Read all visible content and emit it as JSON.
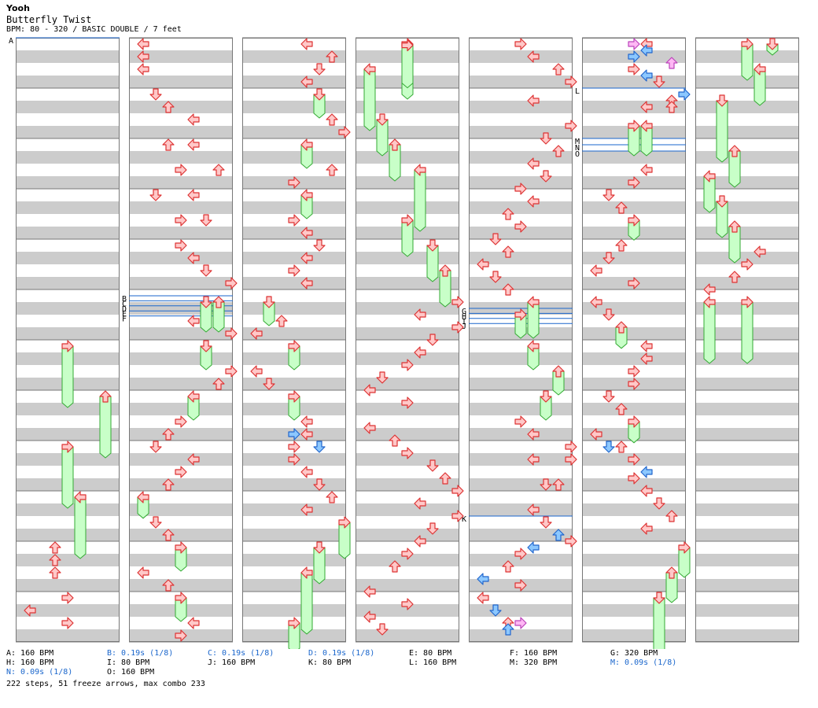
{
  "song": {
    "artist": "Yooh",
    "title": "Butterfly Twist",
    "meta": "BPM: 80 - 320 / BASIC DOUBLE / 7 feet"
  },
  "colors": {
    "arrow_fill": "#ffc8c8",
    "arrow_stroke": "#dd3333",
    "blue_fill": "#8cc8ff",
    "blue_stroke": "#2266cc",
    "pink_fill": "#ffb8f4",
    "pink_stroke": "#bb44bb",
    "freeze_fill": "#c8ffc8",
    "freeze_stroke": "#33aa33",
    "stripe": "#cccccc",
    "marker_line": "#1a66cc"
  },
  "markers": [
    {
      "col": 0,
      "beat": 0,
      "label": "A"
    },
    {
      "col": 1,
      "beat": 20.5,
      "label": "B"
    },
    {
      "col": 1,
      "beat": 20.9,
      "label": "C"
    },
    {
      "col": 1,
      "beat": 21.3,
      "label": "D"
    },
    {
      "col": 1,
      "beat": 21.7,
      "label": "E"
    },
    {
      "col": 1,
      "beat": 22.1,
      "label": "F"
    },
    {
      "col": 4,
      "beat": 21.5,
      "label": "G"
    },
    {
      "col": 4,
      "beat": 21.9,
      "label": "H"
    },
    {
      "col": 4,
      "beat": 22.3,
      "label": "I"
    },
    {
      "col": 4,
      "beat": 22.7,
      "label": "J"
    },
    {
      "col": 4,
      "beat": 38,
      "label": "K"
    },
    {
      "col": 5,
      "beat": 4,
      "label": "L"
    },
    {
      "col": 5,
      "beat": 8,
      "label": "M"
    },
    {
      "col": 5,
      "beat": 8.5,
      "label": "N"
    },
    {
      "col": 5,
      "beat": 9,
      "label": "O"
    }
  ],
  "notes": [
    {
      "col": 0,
      "lane": 3,
      "beat": 24,
      "len": 4.5
    },
    {
      "col": 0,
      "lane": 6,
      "beat": 28,
      "len": 4.5
    },
    {
      "col": 0,
      "lane": 3,
      "beat": 32,
      "len": 4.5
    },
    {
      "col": 0,
      "lane": 4,
      "beat": 36,
      "len": 4.5
    },
    {
      "col": 0,
      "lane": 2,
      "beat": 40
    },
    {
      "col": 0,
      "lane": 2,
      "beat": 41
    },
    {
      "col": 0,
      "lane": 2,
      "beat": 42
    },
    {
      "col": 0,
      "lane": 3,
      "beat": 44
    },
    {
      "col": 0,
      "lane": 0,
      "beat": 45
    },
    {
      "col": 0,
      "lane": 3,
      "beat": 46
    },
    {
      "col": 1,
      "lane": 0,
      "beat": 0
    },
    {
      "col": 1,
      "lane": 0,
      "beat": 1
    },
    {
      "col": 1,
      "lane": 0,
      "beat": 2
    },
    {
      "col": 1,
      "lane": 1,
      "beat": 4
    },
    {
      "col": 1,
      "lane": 2,
      "beat": 5
    },
    {
      "col": 1,
      "lane": 4,
      "beat": 6
    },
    {
      "col": 1,
      "lane": 2,
      "beat": 8
    },
    {
      "col": 1,
      "lane": 4,
      "beat": 8
    },
    {
      "col": 1,
      "lane": 3,
      "beat": 10
    },
    {
      "col": 1,
      "lane": 6,
      "beat": 10
    },
    {
      "col": 1,
      "lane": 1,
      "beat": 12
    },
    {
      "col": 1,
      "lane": 4,
      "beat": 12
    },
    {
      "col": 1,
      "lane": 3,
      "beat": 14
    },
    {
      "col": 1,
      "lane": 5,
      "beat": 14
    },
    {
      "col": 1,
      "lane": 3,
      "beat": 16
    },
    {
      "col": 1,
      "lane": 4,
      "beat": 17
    },
    {
      "col": 1,
      "lane": 5,
      "beat": 18
    },
    {
      "col": 1,
      "lane": 7,
      "beat": 19
    },
    {
      "col": 1,
      "lane": 5,
      "beat": 20.5,
      "len": 2
    },
    {
      "col": 1,
      "lane": 6,
      "beat": 20.5,
      "len": 2
    },
    {
      "col": 1,
      "lane": 4,
      "beat": 22
    },
    {
      "col": 1,
      "lane": 7,
      "beat": 23
    },
    {
      "col": 1,
      "lane": 5,
      "beat": 24,
      "len": 1.5
    },
    {
      "col": 1,
      "lane": 7,
      "beat": 26
    },
    {
      "col": 1,
      "lane": 6,
      "beat": 27
    },
    {
      "col": 1,
      "lane": 4,
      "beat": 28,
      "len": 1.5
    },
    {
      "col": 1,
      "lane": 3,
      "beat": 30
    },
    {
      "col": 1,
      "lane": 2,
      "beat": 31
    },
    {
      "col": 1,
      "lane": 1,
      "beat": 32
    },
    {
      "col": 1,
      "lane": 4,
      "beat": 33
    },
    {
      "col": 1,
      "lane": 3,
      "beat": 34
    },
    {
      "col": 1,
      "lane": 2,
      "beat": 35
    },
    {
      "col": 1,
      "lane": 0,
      "beat": 36,
      "len": 1.3
    },
    {
      "col": 1,
      "lane": 1,
      "beat": 38
    },
    {
      "col": 1,
      "lane": 2,
      "beat": 39
    },
    {
      "col": 1,
      "lane": 3,
      "beat": 40,
      "len": 1.5
    },
    {
      "col": 1,
      "lane": 0,
      "beat": 42
    },
    {
      "col": 1,
      "lane": 2,
      "beat": 43
    },
    {
      "col": 1,
      "lane": 3,
      "beat": 44,
      "len": 1.5
    },
    {
      "col": 1,
      "lane": 4,
      "beat": 46
    },
    {
      "col": 1,
      "lane": 3,
      "beat": 47
    },
    {
      "col": 2,
      "lane": 4,
      "beat": 0
    },
    {
      "col": 2,
      "lane": 6,
      "beat": 1
    },
    {
      "col": 2,
      "lane": 5,
      "beat": 2
    },
    {
      "col": 2,
      "lane": 4,
      "beat": 3
    },
    {
      "col": 2,
      "lane": 5,
      "beat": 4,
      "len": 1.5
    },
    {
      "col": 2,
      "lane": 6,
      "beat": 6
    },
    {
      "col": 2,
      "lane": 7,
      "beat": 7
    },
    {
      "col": 2,
      "lane": 4,
      "beat": 8,
      "len": 1.5
    },
    {
      "col": 2,
      "lane": 6,
      "beat": 10
    },
    {
      "col": 2,
      "lane": 3,
      "beat": 11
    },
    {
      "col": 2,
      "lane": 4,
      "beat": 12,
      "len": 1.5
    },
    {
      "col": 2,
      "lane": 3,
      "beat": 14
    },
    {
      "col": 2,
      "lane": 4,
      "beat": 15
    },
    {
      "col": 2,
      "lane": 5,
      "beat": 16
    },
    {
      "col": 2,
      "lane": 4,
      "beat": 17
    },
    {
      "col": 2,
      "lane": 3,
      "beat": 18
    },
    {
      "col": 2,
      "lane": 4,
      "beat": 19
    },
    {
      "col": 2,
      "lane": 1,
      "beat": 20.5,
      "len": 1.5
    },
    {
      "col": 2,
      "lane": 2,
      "beat": 22
    },
    {
      "col": 2,
      "lane": 0,
      "beat": 23
    },
    {
      "col": 2,
      "lane": 3,
      "beat": 24,
      "len": 1.5
    },
    {
      "col": 2,
      "lane": 0,
      "beat": 26
    },
    {
      "col": 2,
      "lane": 1,
      "beat": 27
    },
    {
      "col": 2,
      "lane": 3,
      "beat": 28,
      "len": 1.5
    },
    {
      "col": 2,
      "lane": 4,
      "beat": 30
    },
    {
      "col": 2,
      "lane": 3,
      "beat": 31,
      "t": "blue"
    },
    {
      "col": 2,
      "lane": 4,
      "beat": 31
    },
    {
      "col": 2,
      "lane": 3,
      "beat": 32
    },
    {
      "col": 2,
      "lane": 5,
      "beat": 32,
      "t": "blue"
    },
    {
      "col": 2,
      "lane": 3,
      "beat": 33
    },
    {
      "col": 2,
      "lane": 4,
      "beat": 34
    },
    {
      "col": 2,
      "lane": 5,
      "beat": 35
    },
    {
      "col": 2,
      "lane": 6,
      "beat": 36
    },
    {
      "col": 2,
      "lane": 4,
      "beat": 37
    },
    {
      "col": 2,
      "lane": 7,
      "beat": 38,
      "len": 2.5
    },
    {
      "col": 2,
      "lane": 5,
      "beat": 40,
      "len": 2.5
    },
    {
      "col": 2,
      "lane": 4,
      "beat": 42,
      "len": 4.5
    },
    {
      "col": 2,
      "lane": 3,
      "beat": 46,
      "len": 2
    },
    {
      "col": 3,
      "lane": 3,
      "beat": 0,
      "len": 4
    },
    {
      "col": 3,
      "lane": 3,
      "beat": 0.1,
      "len": 3
    },
    {
      "col": 3,
      "lane": 0,
      "beat": 2,
      "len": 4.5
    },
    {
      "col": 3,
      "lane": 1,
      "beat": 6,
      "len": 2.5
    },
    {
      "col": 3,
      "lane": 2,
      "beat": 8,
      "len": 2.5
    },
    {
      "col": 3,
      "lane": 4,
      "beat": 10,
      "len": 4.5
    },
    {
      "col": 3,
      "lane": 3,
      "beat": 14,
      "len": 2.5
    },
    {
      "col": 3,
      "lane": 5,
      "beat": 16,
      "len": 2.5
    },
    {
      "col": 3,
      "lane": 6,
      "beat": 18,
      "len": 2.5
    },
    {
      "col": 3,
      "lane": 7,
      "beat": 20.5
    },
    {
      "col": 3,
      "lane": 4,
      "beat": 21.5
    },
    {
      "col": 3,
      "lane": 7,
      "beat": 22.5
    },
    {
      "col": 3,
      "lane": 5,
      "beat": 23.5
    },
    {
      "col": 3,
      "lane": 4,
      "beat": 24.5
    },
    {
      "col": 3,
      "lane": 3,
      "beat": 25.5
    },
    {
      "col": 3,
      "lane": 1,
      "beat": 26.5
    },
    {
      "col": 3,
      "lane": 0,
      "beat": 27.5
    },
    {
      "col": 3,
      "lane": 3,
      "beat": 28.5
    },
    {
      "col": 3,
      "lane": 0,
      "beat": 30.5
    },
    {
      "col": 3,
      "lane": 2,
      "beat": 31.5
    },
    {
      "col": 3,
      "lane": 3,
      "beat": 32.5
    },
    {
      "col": 3,
      "lane": 5,
      "beat": 33.5
    },
    {
      "col": 3,
      "lane": 6,
      "beat": 34.5
    },
    {
      "col": 3,
      "lane": 7,
      "beat": 35.5
    },
    {
      "col": 3,
      "lane": 4,
      "beat": 36.5
    },
    {
      "col": 3,
      "lane": 7,
      "beat": 37.5
    },
    {
      "col": 3,
      "lane": 5,
      "beat": 38.5
    },
    {
      "col": 3,
      "lane": 4,
      "beat": 39.5
    },
    {
      "col": 3,
      "lane": 3,
      "beat": 40.5
    },
    {
      "col": 3,
      "lane": 2,
      "beat": 41.5
    },
    {
      "col": 3,
      "lane": 0,
      "beat": 43.5
    },
    {
      "col": 3,
      "lane": 3,
      "beat": 44.5
    },
    {
      "col": 3,
      "lane": 0,
      "beat": 45.5
    },
    {
      "col": 3,
      "lane": 1,
      "beat": 46.5
    },
    {
      "col": 4,
      "lane": 3,
      "beat": 0
    },
    {
      "col": 4,
      "lane": 4,
      "beat": 1
    },
    {
      "col": 4,
      "lane": 6,
      "beat": 2
    },
    {
      "col": 4,
      "lane": 7,
      "beat": 3
    },
    {
      "col": 4,
      "lane": 4,
      "beat": 4.5
    },
    {
      "col": 4,
      "lane": 7,
      "beat": 6.5
    },
    {
      "col": 4,
      "lane": 5,
      "beat": 7.5
    },
    {
      "col": 4,
      "lane": 6,
      "beat": 8.5
    },
    {
      "col": 4,
      "lane": 4,
      "beat": 9.5
    },
    {
      "col": 4,
      "lane": 5,
      "beat": 10.5
    },
    {
      "col": 4,
      "lane": 3,
      "beat": 11.5
    },
    {
      "col": 4,
      "lane": 4,
      "beat": 12.5
    },
    {
      "col": 4,
      "lane": 2,
      "beat": 13.5
    },
    {
      "col": 4,
      "lane": 3,
      "beat": 14.5
    },
    {
      "col": 4,
      "lane": 1,
      "beat": 15.5
    },
    {
      "col": 4,
      "lane": 2,
      "beat": 16.5
    },
    {
      "col": 4,
      "lane": 0,
      "beat": 17.5
    },
    {
      "col": 4,
      "lane": 1,
      "beat": 18.5
    },
    {
      "col": 4,
      "lane": 2,
      "beat": 19.5
    },
    {
      "col": 4,
      "lane": 4,
      "beat": 20.5,
      "len": 2.5
    },
    {
      "col": 4,
      "lane": 3,
      "beat": 21.5,
      "len": 1.5
    },
    {
      "col": 4,
      "lane": 4,
      "beat": 24,
      "len": 1.5
    },
    {
      "col": 4,
      "lane": 6,
      "beat": 26,
      "len": 1.5
    },
    {
      "col": 4,
      "lane": 5,
      "beat": 28,
      "len": 1.5
    },
    {
      "col": 4,
      "lane": 3,
      "beat": 30
    },
    {
      "col": 4,
      "lane": 4,
      "beat": 31
    },
    {
      "col": 4,
      "lane": 7,
      "beat": 32
    },
    {
      "col": 4,
      "lane": 4,
      "beat": 33
    },
    {
      "col": 4,
      "lane": 7,
      "beat": 33
    },
    {
      "col": 4,
      "lane": 5,
      "beat": 35
    },
    {
      "col": 4,
      "lane": 6,
      "beat": 35
    },
    {
      "col": 4,
      "lane": 4,
      "beat": 37
    },
    {
      "col": 4,
      "lane": 5,
      "beat": 38
    },
    {
      "col": 4,
      "lane": 6,
      "beat": 39,
      "t": "blue"
    },
    {
      "col": 4,
      "lane": 7,
      "beat": 39.5
    },
    {
      "col": 4,
      "lane": 4,
      "beat": 40,
      "t": "blue"
    },
    {
      "col": 4,
      "lane": 3,
      "beat": 40.5
    },
    {
      "col": 4,
      "lane": 2,
      "beat": 41.5
    },
    {
      "col": 4,
      "lane": 0,
      "beat": 42.5,
      "t": "blue"
    },
    {
      "col": 4,
      "lane": 3,
      "beat": 43
    },
    {
      "col": 4,
      "lane": 0,
      "beat": 44
    },
    {
      "col": 4,
      "lane": 1,
      "beat": 45,
      "t": "blue"
    },
    {
      "col": 4,
      "lane": 2,
      "beat": 46
    },
    {
      "col": 4,
      "lane": 2,
      "beat": 46.5,
      "t": "blue"
    },
    {
      "col": 4,
      "lane": 3,
      "beat": 46,
      "t": "pink"
    },
    {
      "col": 5,
      "lane": 3,
      "beat": 0,
      "t": "pink"
    },
    {
      "col": 5,
      "lane": 4,
      "beat": 0
    },
    {
      "col": 5,
      "lane": 4,
      "beat": 0.5,
      "t": "blue"
    },
    {
      "col": 5,
      "lane": 3,
      "beat": 1,
      "t": "blue"
    },
    {
      "col": 5,
      "lane": 6,
      "beat": 1.5,
      "t": "pink"
    },
    {
      "col": 5,
      "lane": 3,
      "beat": 2
    },
    {
      "col": 5,
      "lane": 4,
      "beat": 2.5,
      "t": "blue"
    },
    {
      "col": 5,
      "lane": 5,
      "beat": 3
    },
    {
      "col": 5,
      "lane": 7,
      "beat": 4,
      "t": "blue"
    },
    {
      "col": 5,
      "lane": 6,
      "beat": 4.5
    },
    {
      "col": 5,
      "lane": 4,
      "beat": 5
    },
    {
      "col": 5,
      "lane": 6,
      "beat": 5
    },
    {
      "col": 5,
      "lane": 3,
      "beat": 6.5,
      "len": 2
    },
    {
      "col": 5,
      "lane": 4,
      "beat": 6.5,
      "len": 2
    },
    {
      "col": 5,
      "lane": 4,
      "beat": 10
    },
    {
      "col": 5,
      "lane": 3,
      "beat": 11
    },
    {
      "col": 5,
      "lane": 1,
      "beat": 12
    },
    {
      "col": 5,
      "lane": 2,
      "beat": 13
    },
    {
      "col": 5,
      "lane": 3,
      "beat": 14,
      "len": 1.2
    },
    {
      "col": 5,
      "lane": 2,
      "beat": 16
    },
    {
      "col": 5,
      "lane": 1,
      "beat": 17
    },
    {
      "col": 5,
      "lane": 0,
      "beat": 18
    },
    {
      "col": 5,
      "lane": 3,
      "beat": 19
    },
    {
      "col": 5,
      "lane": 0,
      "beat": 20.5
    },
    {
      "col": 5,
      "lane": 1,
      "beat": 21.5
    },
    {
      "col": 5,
      "lane": 2,
      "beat": 22.5,
      "len": 1.3
    },
    {
      "col": 5,
      "lane": 4,
      "beat": 24
    },
    {
      "col": 5,
      "lane": 4,
      "beat": 25
    },
    {
      "col": 5,
      "lane": 3,
      "beat": 26
    },
    {
      "col": 5,
      "lane": 3,
      "beat": 27
    },
    {
      "col": 5,
      "lane": 1,
      "beat": 28
    },
    {
      "col": 5,
      "lane": 2,
      "beat": 29
    },
    {
      "col": 5,
      "lane": 3,
      "beat": 30,
      "len": 1.3
    },
    {
      "col": 5,
      "lane": 0,
      "beat": 31
    },
    {
      "col": 5,
      "lane": 1,
      "beat": 32,
      "t": "blue"
    },
    {
      "col": 5,
      "lane": 2,
      "beat": 32
    },
    {
      "col": 5,
      "lane": 3,
      "beat": 33
    },
    {
      "col": 5,
      "lane": 4,
      "beat": 34,
      "t": "blue"
    },
    {
      "col": 5,
      "lane": 3,
      "beat": 34.5
    },
    {
      "col": 5,
      "lane": 4,
      "beat": 35.5
    },
    {
      "col": 5,
      "lane": 5,
      "beat": 36.5
    },
    {
      "col": 5,
      "lane": 6,
      "beat": 37.5
    },
    {
      "col": 5,
      "lane": 4,
      "beat": 38.5
    },
    {
      "col": 5,
      "lane": 7,
      "beat": 40,
      "len": 2
    },
    {
      "col": 5,
      "lane": 6,
      "beat": 42,
      "len": 2
    },
    {
      "col": 5,
      "lane": 5,
      "beat": 44,
      "len": 4.5
    },
    {
      "col": 6,
      "lane": 5,
      "beat": 0,
      "len": 0.5
    },
    {
      "col": 6,
      "lane": 3,
      "beat": 0,
      "len": 2.5
    },
    {
      "col": 6,
      "lane": 4,
      "beat": 2,
      "len": 2.5
    },
    {
      "col": 6,
      "lane": 1,
      "beat": 4.5,
      "len": 4.5
    },
    {
      "col": 6,
      "lane": 2,
      "beat": 8.5,
      "len": 2.5
    },
    {
      "col": 6,
      "lane": 0,
      "beat": 10.5,
      "len": 2.5
    },
    {
      "col": 6,
      "lane": 1,
      "beat": 12.5,
      "len": 2.5
    },
    {
      "col": 6,
      "lane": 2,
      "beat": 14.5,
      "len": 2.5
    },
    {
      "col": 6,
      "lane": 4,
      "beat": 16.5
    },
    {
      "col": 6,
      "lane": 3,
      "beat": 17.5
    },
    {
      "col": 6,
      "lane": 2,
      "beat": 18.5
    },
    {
      "col": 6,
      "lane": 0,
      "beat": 19.5
    },
    {
      "col": 6,
      "lane": 0,
      "beat": 20.5,
      "len": 4.5
    },
    {
      "col": 6,
      "lane": 3,
      "beat": 20.5,
      "len": 4.5
    }
  ],
  "legend": [
    {
      "row": 0,
      "col": 0,
      "text": "A: 160 BPM",
      "blue": false
    },
    {
      "row": 0,
      "col": 1,
      "text": "B: 0.19s (1/8)",
      "blue": true
    },
    {
      "row": 0,
      "col": 2,
      "text": "C: 0.19s (1/8)",
      "blue": true
    },
    {
      "row": 0,
      "col": 3,
      "text": "D: 0.19s (1/8)",
      "blue": true
    },
    {
      "row": 0,
      "col": 4,
      "text": "E: 80 BPM",
      "blue": false
    },
    {
      "row": 0,
      "col": 5,
      "text": "F: 160 BPM",
      "blue": false
    },
    {
      "row": 0,
      "col": 6,
      "text": "G: 320 BPM",
      "blue": false
    },
    {
      "row": 1,
      "col": 0,
      "text": "H: 160 BPM",
      "blue": false
    },
    {
      "row": 1,
      "col": 1,
      "text": "I: 80 BPM",
      "blue": false
    },
    {
      "row": 1,
      "col": 2,
      "text": "J: 160 BPM",
      "blue": false
    },
    {
      "row": 1,
      "col": 3,
      "text": "K: 80 BPM",
      "blue": false
    },
    {
      "row": 1,
      "col": 4,
      "text": "L: 160 BPM",
      "blue": false
    },
    {
      "row": 1,
      "col": 5,
      "text": "M: 320 BPM",
      "blue": false
    },
    {
      "row": 1,
      "col": 6,
      "text": "M: 0.09s (1/8)",
      "blue": true
    },
    {
      "row": 2,
      "col": 0,
      "text": "N: 0.09s (1/8)",
      "blue": true
    },
    {
      "row": 2,
      "col": 1,
      "text": "O: 160 BPM",
      "blue": false
    }
  ],
  "stats": "222 steps, 51 freeze arrows, max combo 233"
}
